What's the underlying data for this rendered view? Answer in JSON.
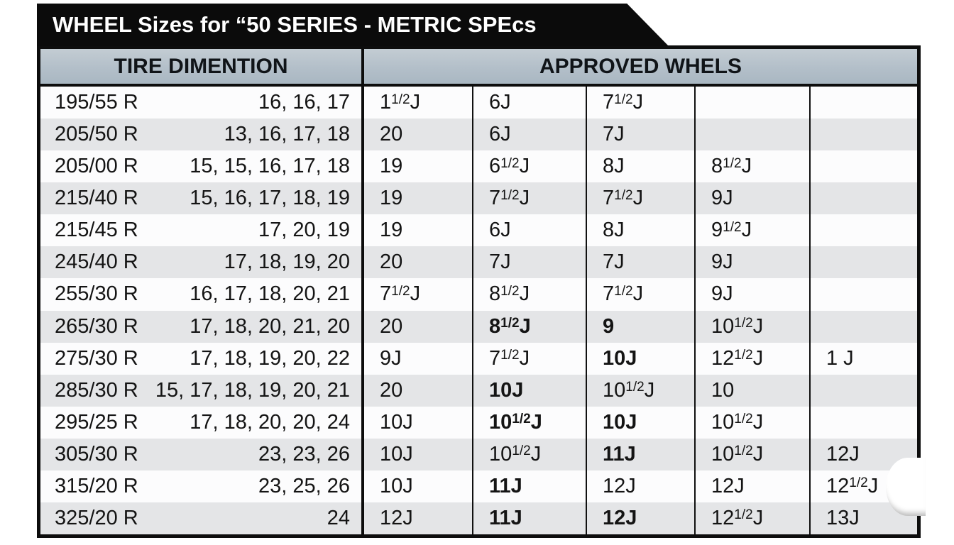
{
  "title": "WHEEL Sizes for “50 SERIES - METRIC SPEcs",
  "header": {
    "tire_label": "TIRE DIMENTION",
    "wheels_label": "APPROVED WHELS"
  },
  "colors": {
    "banner_bg": "#0b0b0b",
    "banner_text": "#ffffff",
    "header_bg": "#b5c1ca",
    "row_white": "#fcfcfd",
    "row_gray": "#e4e5e7",
    "border": "#0d0d0d",
    "text": "#141414"
  },
  "table": {
    "rows": [
      {
        "size": "195/55 R",
        "diameters": "16, 16, 17",
        "wheels": [
          {
            "text": "1",
            "frac": "1/2",
            "suffix": "J"
          },
          {
            "text": "6J"
          },
          {
            "text": "7",
            "frac": "1/2",
            "suffix": "J"
          },
          null,
          null
        ]
      },
      {
        "size": "205/50 R",
        "diameters": "13, 16, 17, 18",
        "wheels": [
          {
            "text": "20"
          },
          {
            "text": "6J"
          },
          {
            "text": "7J"
          },
          null,
          null
        ]
      },
      {
        "size": "205/00 R",
        "diameters": "15, 15, 16, 17, 18",
        "wheels": [
          {
            "text": "19"
          },
          {
            "text": "6",
            "frac": "1/2",
            "suffix": "J"
          },
          {
            "text": "8J"
          },
          {
            "text": "8",
            "frac": "1/2",
            "suffix": "J"
          },
          null
        ]
      },
      {
        "size": "215/40 R",
        "diameters": "15, 16, 17, 18, 19",
        "wheels": [
          {
            "text": "19"
          },
          {
            "text": "7",
            "frac": "1/2",
            "suffix": "J"
          },
          {
            "text": "7",
            "frac": "1/2",
            "suffix": "J"
          },
          {
            "text": "9J"
          },
          null
        ]
      },
      {
        "size": "215/45 R",
        "diameters": "17, 20, 19",
        "wheels": [
          {
            "text": "19"
          },
          {
            "text": "6J"
          },
          {
            "text": "8J"
          },
          {
            "text": "9",
            "frac": "1/2",
            "suffix": "J"
          },
          null
        ]
      },
      {
        "size": "245/40 R",
        "diameters": "17, 18, 19, 20",
        "wheels": [
          {
            "text": "20"
          },
          {
            "text": "7J"
          },
          {
            "text": "7J"
          },
          {
            "text": "9J"
          },
          null
        ]
      },
      {
        "size": "255/30 R",
        "diameters": "16, 17, 18, 20, 21",
        "wheels": [
          {
            "text": "7",
            "frac": "1/2",
            "suffix": "J"
          },
          {
            "text": "8",
            "frac": "1/2",
            "suffix": "J"
          },
          {
            "text": "7",
            "frac": "1/2",
            "suffix": "J"
          },
          {
            "text": "9J"
          },
          null
        ]
      },
      {
        "size": "265/30 R",
        "diameters": "17, 18, 20, 21, 20",
        "wheels": [
          {
            "text": "20"
          },
          {
            "text": "8",
            "frac": "1/2",
            "suffix": "J",
            "bold": true
          },
          {
            "text": "9",
            "bold": true
          },
          {
            "text": "10",
            "frac": "1/2",
            "suffix": "J"
          },
          null
        ]
      },
      {
        "size": "275/30 R",
        "diameters": "17, 18, 19, 20, 22",
        "wheels": [
          {
            "text": "9J"
          },
          {
            "text": "7",
            "frac": "1/2",
            "suffix": "J"
          },
          {
            "text": "10J",
            "bold": true
          },
          {
            "text": "12",
            "frac": "1/2",
            "suffix": "J"
          },
          {
            "text": "1 J"
          }
        ]
      },
      {
        "size": "285/30 R",
        "diameters": "15, 17, 18, 19, 20, 21",
        "wheels": [
          {
            "text": "20"
          },
          {
            "text": "10J",
            "bold": true
          },
          {
            "text": "10",
            "frac": "1/2",
            "suffix": "J"
          },
          {
            "text": "10"
          },
          null
        ]
      },
      {
        "size": "295/25 R",
        "diameters": "17, 18, 20, 20, 24",
        "wheels": [
          {
            "text": "10J"
          },
          {
            "text": "10",
            "frac": "1/2",
            "suffix": "J",
            "bold": true
          },
          {
            "text": "10J",
            "bold": true
          },
          {
            "text": "10",
            "frac": "1/2",
            "suffix": "J"
          },
          null
        ]
      },
      {
        "size": "305/30 R",
        "diameters": "23, 23, 26",
        "wheels": [
          {
            "text": "10J"
          },
          {
            "text": "10",
            "frac": "1/2",
            "suffix": "J"
          },
          {
            "text": "11J",
            "bold": true
          },
          {
            "text": "10",
            "frac": "1/2",
            "suffix": "J"
          },
          {
            "text": "12J"
          }
        ]
      },
      {
        "size": "315/20 R",
        "diameters": "23, 25, 26",
        "wheels": [
          {
            "text": "10J"
          },
          {
            "text": "11J",
            "bold": true
          },
          {
            "text": "12J"
          },
          {
            "text": "12J"
          },
          {
            "text": "12",
            "frac": "1/2",
            "suffix": "J"
          }
        ]
      },
      {
        "size": "325/20 R",
        "diameters": "24",
        "wheels": [
          {
            "text": "12J"
          },
          {
            "text": "11J",
            "bold": true
          },
          {
            "text": "12J",
            "bold": true
          },
          {
            "text": "12",
            "frac": "1/2",
            "suffix": "J"
          },
          {
            "text": "13J"
          }
        ]
      }
    ]
  }
}
